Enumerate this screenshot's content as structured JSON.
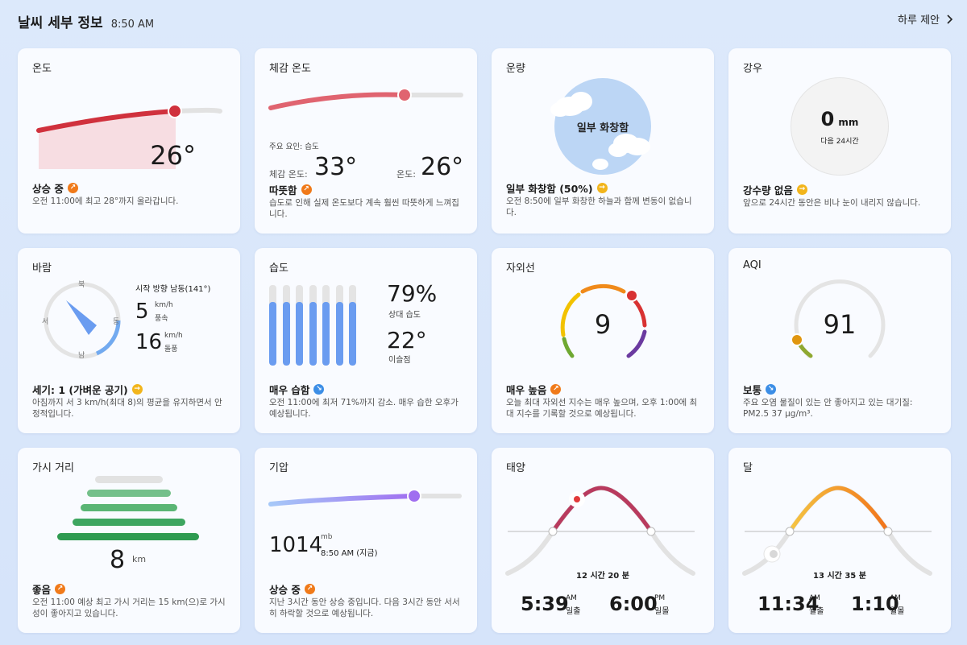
{
  "header": {
    "title": "날씨 세부 정보",
    "time": "8:50 AM",
    "suggest_label": "하루 제안"
  },
  "temperature": {
    "title": "온도",
    "value": "26°",
    "status": "상승 중",
    "desc": "오전 11:00에 최고 28°까지 올라갑니다."
  },
  "feels_like": {
    "title": "체감 온도",
    "factor": "주요 요인: 습도",
    "feels_label": "체감 온도:",
    "feels_value": "33°",
    "temp_label": "온도:",
    "temp_value": "26°",
    "status": "따뜻함",
    "desc": "습도로 인해 실제 온도보다 계속 훨씬 따뜻하게 느껴집니다."
  },
  "cloud": {
    "title": "운량",
    "center_label": "일부 화창함",
    "status": "일부 화창함 (50%)",
    "desc": "오전 8:50에 일부 화창한 하늘과 함께 변동이 없습니다."
  },
  "rain": {
    "title": "강우",
    "amount": "0",
    "unit": "mm",
    "period": "다음 24시간",
    "status": "강수량 없음",
    "desc": "앞으로 24시간 동안은 비나 눈이 내리지 않습니다."
  },
  "wind": {
    "title": "바람",
    "dir_n": "북",
    "dir_e": "동",
    "dir_s": "남",
    "dir_w": "서",
    "from_dir": "시작 방향 남동(141°)",
    "speed": "5",
    "speed_unit": "km/h",
    "speed_label": "풍속",
    "gust": "16",
    "gust_unit": "km/h",
    "gust_label": "돌풍",
    "status": "세기: 1 (가벼운 공기)",
    "desc": "아침까지 서 3 km/h(최대 8)의 평균을 유지하면서 안정적입니다."
  },
  "humidity": {
    "title": "습도",
    "rel_value": "79%",
    "rel_label": "상대 습도",
    "dew_value": "22°",
    "dew_label": "이슬점",
    "status": "매우 습함",
    "desc": "오전 11:00에 최저 71%까지 감소. 매우 습한 오후가 예상됩니다.",
    "bar_levels": [
      0.79,
      0.79,
      0.79,
      0.79,
      0.79,
      0.79,
      0.79
    ]
  },
  "uv": {
    "title": "자외선",
    "value": "9",
    "status": "매우 높음",
    "desc": "오늘 최대 자외선 지수는 매우 높으며, 오후 1:00에 최대 지수를 기록할 것으로 예상됩니다."
  },
  "aqi": {
    "title": "AQI",
    "value": "91",
    "status": "보통",
    "desc": "주요 오염 물질이 있는 안 좋아지고 있는 대기질: PM2.5 37 µg/m³."
  },
  "visibility": {
    "title": "가시 거리",
    "value": "8",
    "unit": "km",
    "status": "좋음",
    "desc": "오전 11:00 예상 최고 가시 거리는 15 km(으)로 가시성이 좋아지고 있습니다."
  },
  "pressure": {
    "title": "기압",
    "value": "1014",
    "unit": "mb",
    "time": "8:50 AM (지금)",
    "status": "상승 중",
    "desc": "지난 3시간 동안 상승 중입니다. 다음 3시간 동안 서서히 하락할 것으로 예상됩니다."
  },
  "sun": {
    "title": "태양",
    "duration": "12 시간 20 분",
    "rise_time": "5:39",
    "rise_ampm": "AM",
    "rise_label": "일출",
    "set_time": "6:00",
    "set_ampm": "PM",
    "set_label": "일몰"
  },
  "moon": {
    "title": "달",
    "duration": "13 시간 35 분",
    "rise_time": "11:34",
    "rise_ampm": "AM",
    "rise_label": "월출",
    "set_time": "1:10",
    "set_ampm": "AM",
    "set_label": "월몰"
  },
  "colors": {
    "temp_red": "#d0313d",
    "feels_red": "#e06470",
    "humidity_blue": "#6a9cf0",
    "visibility_green": "#2f9b51",
    "pressure_purple": "#a06ef0",
    "sun_arc": "#b83a5e",
    "moon_arc": "#f2a23a"
  },
  "icons": {
    "trend_up": "trend-up-icon",
    "trend_flat": "trend-flat-icon",
    "trend_down": "trend-down-icon",
    "chevron": "chevron-right-icon"
  }
}
